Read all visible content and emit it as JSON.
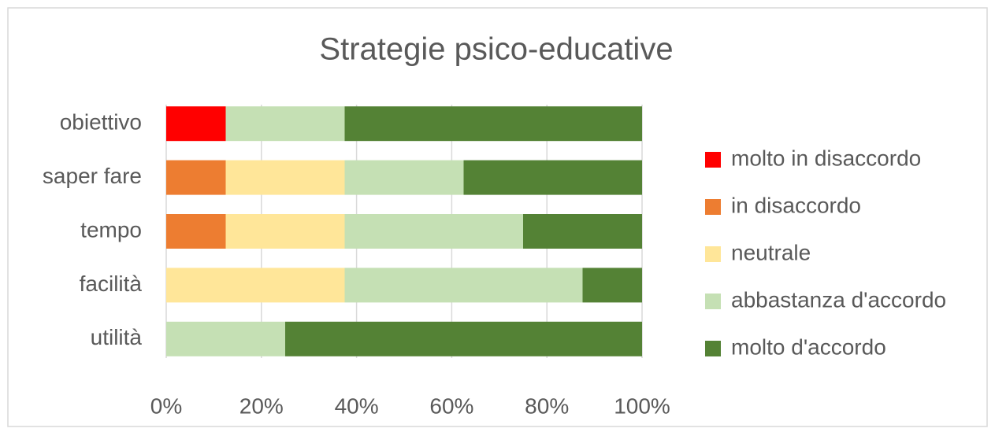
{
  "chart_data": {
    "type": "bar",
    "orientation": "horizontal",
    "stacked": true,
    "title": "Strategie psico-educative",
    "categories": [
      "obiettivo",
      "saper fare",
      "tempo",
      "facilità",
      "utilità"
    ],
    "series": [
      {
        "name": "molto in disaccordo",
        "color": "#ff0000",
        "values": [
          12.5,
          0,
          0,
          0,
          0
        ]
      },
      {
        "name": "in disaccordo",
        "color": "#ed7d31",
        "values": [
          0,
          12.5,
          12.5,
          0,
          0
        ]
      },
      {
        "name": "neutrale",
        "color": "#ffe699",
        "values": [
          0,
          25,
          25,
          37.5,
          0
        ]
      },
      {
        "name": "abbastanza d'accordo",
        "color": "#c5e0b4",
        "values": [
          25,
          25,
          37.5,
          50,
          25
        ]
      },
      {
        "name": "molto d'accordo",
        "color": "#548235",
        "values": [
          62.5,
          37.5,
          25,
          12.5,
          75
        ]
      }
    ],
    "xlim": [
      0,
      100
    ],
    "xticks": [
      {
        "value": 0,
        "label": "0%"
      },
      {
        "value": 20,
        "label": "20%"
      },
      {
        "value": 40,
        "label": "40%"
      },
      {
        "value": 60,
        "label": "60%"
      },
      {
        "value": 80,
        "label": "80%"
      },
      {
        "value": 100,
        "label": "100%"
      }
    ],
    "grid": true,
    "legend": "right"
  }
}
